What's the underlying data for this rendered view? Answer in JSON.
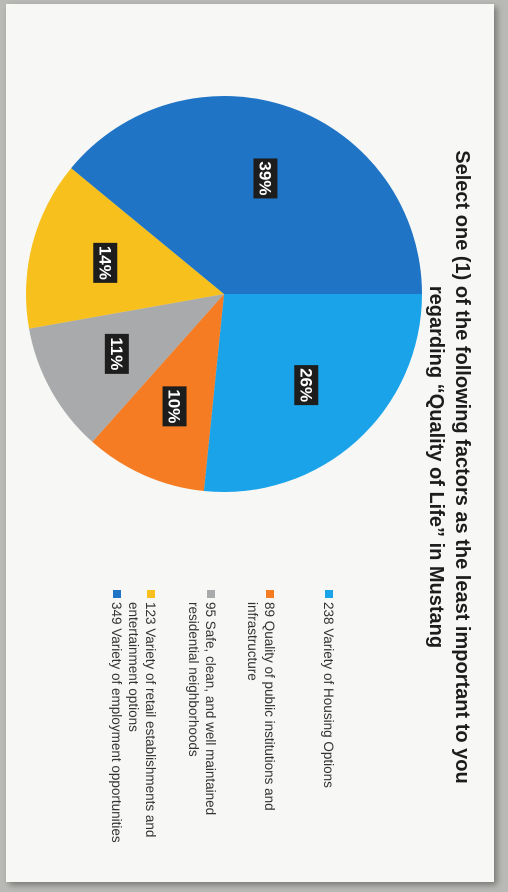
{
  "chart_data": {
    "type": "pie",
    "title_lines": [
      "Select one (1) of the following factors as the least important to you",
      "regarding “Quality of Life” in Mustang"
    ],
    "slices": [
      {
        "label": "Variety of Housing Options",
        "count": 238,
        "percent_label": "26%",
        "color": "#1aa3e8",
        "legend_lines": [
          "238 Variety of Housing Options"
        ]
      },
      {
        "label": "Quality of public institutions and infrastructure",
        "count": 89,
        "percent_label": "10%",
        "color": "#f57c22",
        "legend_lines": [
          "89 Quality of public institutions and",
          "infrastructure"
        ]
      },
      {
        "label": "Safe, clean, and well maintained residential neighborhoods",
        "count": 95,
        "percent_label": "11%",
        "color": "#a8aaac",
        "legend_lines": [
          "95 Safe, clean, and well maintained",
          "residential neighborhoods"
        ]
      },
      {
        "label": "Variety of retail establishments and entertainment options",
        "count": 123,
        "percent_label": "14%",
        "color": "#f7c01c",
        "legend_lines": [
          "123 Variety of retail establishments and",
          "entertainment options"
        ]
      },
      {
        "label": "Variety of employment opportunities",
        "count": 349,
        "percent_label": "39%",
        "color": "#1f74c6",
        "legend_lines": [
          "349 Variety of employment opportunities"
        ]
      }
    ],
    "legend_position": "right"
  }
}
